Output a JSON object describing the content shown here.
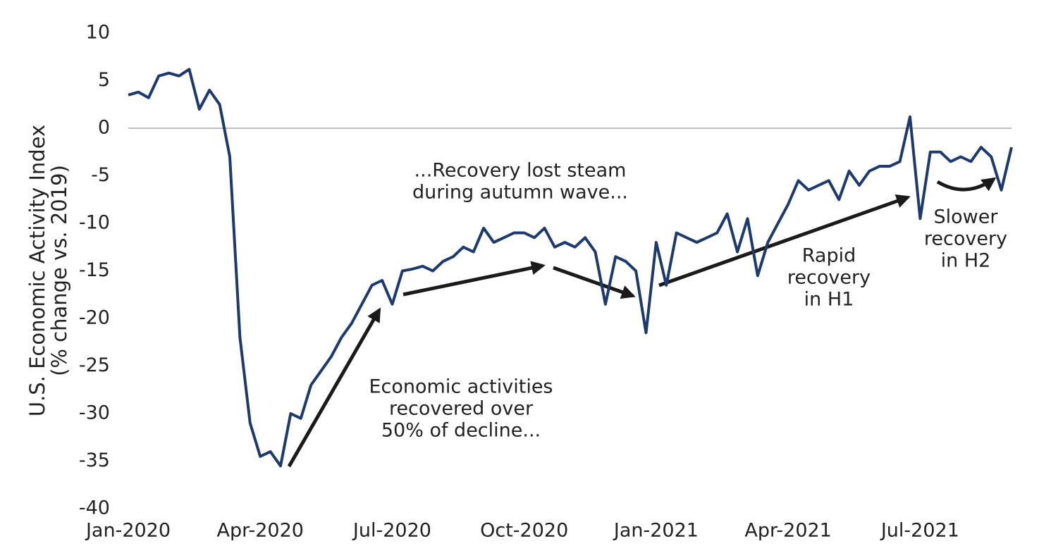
{
  "chart_data": {
    "type": "line",
    "ylabel": [
      "U.S. Economic Activity Index",
      "(% change vs. 2019)"
    ],
    "categories": [
      "Jan-2020",
      null,
      null,
      null,
      null,
      null,
      null,
      null,
      null,
      null,
      null,
      null,
      null,
      "Apr-2020",
      null,
      null,
      null,
      null,
      null,
      null,
      null,
      null,
      null,
      null,
      null,
      null,
      "Jul-2020",
      null,
      null,
      null,
      null,
      null,
      null,
      null,
      null,
      null,
      null,
      null,
      null,
      "Oct-2020",
      null,
      null,
      null,
      null,
      null,
      null,
      null,
      null,
      null,
      null,
      null,
      null,
      "Jan-2021",
      null,
      null,
      null,
      null,
      null,
      null,
      null,
      null,
      null,
      null,
      null,
      null,
      "Apr-2021",
      null,
      null,
      null,
      null,
      null,
      null,
      null,
      null,
      null,
      null,
      null,
      null,
      "Jul-2021",
      null,
      null,
      null,
      null,
      null,
      null,
      null,
      null,
      null
    ],
    "values": [
      3.5,
      3.8,
      3.2,
      5.5,
      5.8,
      5.5,
      6.2,
      2,
      4,
      2.5,
      -3,
      -22,
      -31,
      -34.5,
      -34,
      -35.5,
      -30,
      -30.5,
      -27,
      -25.5,
      -24,
      -22,
      -20.5,
      -18.5,
      -16.5,
      -16,
      -18.5,
      -15,
      -14.8,
      -14.5,
      -15,
      -14,
      -13.5,
      -12.5,
      -13,
      -10.5,
      -12,
      -11.5,
      -11,
      -11,
      -11.5,
      -10.5,
      -12.5,
      -12,
      -12.5,
      -11.5,
      -13,
      -18.5,
      -13.5,
      -14,
      -15,
      -21.5,
      -12,
      -16.5,
      -11,
      -11.5,
      -12,
      -11.5,
      -11,
      -9,
      -13,
      -9.5,
      -15.5,
      -12,
      -10,
      -8,
      -5.5,
      -6.5,
      -6,
      -5.5,
      -7.5,
      -4.5,
      -6,
      -4.5,
      -4,
      -4,
      -3.5,
      1.2,
      -9.5,
      -2.5,
      -2.5,
      -3.5,
      -3,
      -3.5,
      -2,
      -3,
      -6.5,
      -2
    ],
    "color": "#1c3a6e",
    "ylim": [
      -40,
      10
    ],
    "yticks": [
      10,
      5,
      0,
      -5,
      -10,
      -15,
      -20,
      -25,
      -30,
      -35,
      -40
    ],
    "grid": false,
    "zero_line": true,
    "annotations": [
      [
        "Economic activities",
        "recovered over",
        "50% of decline..."
      ],
      [
        "...Recovery lost steam",
        "during autumn wave..."
      ],
      [
        "Rapid",
        "recovery",
        "in H1"
      ],
      [
        "Slower",
        "recovery",
        "in H2"
      ]
    ]
  }
}
